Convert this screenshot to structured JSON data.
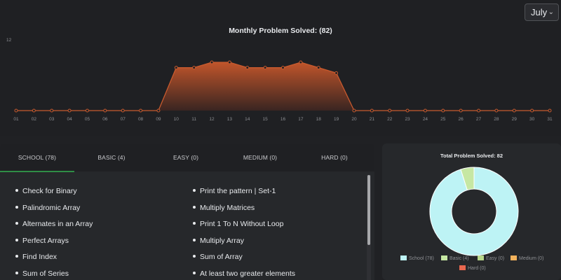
{
  "month_select": {
    "value": "July"
  },
  "chart_data": [
    {
      "type": "area",
      "title": "Monthly Problem Solved: (82)",
      "x": [
        "01",
        "02",
        "03",
        "04",
        "05",
        "06",
        "07",
        "08",
        "09",
        "10",
        "11",
        "12",
        "13",
        "14",
        "15",
        "16",
        "17",
        "18",
        "19",
        "20",
        "21",
        "22",
        "23",
        "24",
        "25",
        "26",
        "27",
        "28",
        "29",
        "30",
        "31"
      ],
      "series": [
        {
          "values": [
            0,
            0,
            0,
            0,
            0,
            0,
            0,
            0,
            0,
            8,
            8,
            9,
            9,
            8,
            8,
            8,
            9,
            8,
            7,
            0,
            0,
            0,
            0,
            0,
            0,
            0,
            0,
            0,
            0,
            0,
            0
          ]
        }
      ],
      "yticks": [
        "12"
      ],
      "ylim": [
        0,
        12
      ],
      "colors": {
        "line": "#c85a2e",
        "fill_top": "#c0552b",
        "fill_bottom": "#3a2521"
      },
      "grid": false
    },
    {
      "type": "pie",
      "title": "Total Problem Solved: 82",
      "categories": [
        "School (78)",
        "Basic (4)",
        "Easy (0)",
        "Medium (0)",
        "Hard (0)"
      ],
      "values": [
        78,
        4,
        0,
        0,
        0
      ],
      "colors": [
        "#bdf3f5",
        "#c6e7a3",
        "#b9d98b",
        "#f2b25c",
        "#e8674f"
      ],
      "legend": "bottom"
    }
  ],
  "tabs": [
    {
      "label": "SCHOOL (78)",
      "active": true
    },
    {
      "label": "BASIC (4)",
      "active": false
    },
    {
      "label": "EASY (0)",
      "active": false
    },
    {
      "label": "MEDIUM (0)",
      "active": false
    },
    {
      "label": "HARD (0)",
      "active": false
    }
  ],
  "problems_left": [
    "Check for Binary",
    "Palindromic Array",
    "Alternates in an Array",
    "Perfect Arrays",
    "Find Index",
    "Sum of Series"
  ],
  "problems_right": [
    "Print the pattern | Set-1",
    "Multiply Matrices",
    "Print 1 To N Without Loop",
    "Multiply Array",
    "Sum of Array",
    "At least two greater elements"
  ],
  "colors": {
    "accent": "#2f8d46"
  }
}
